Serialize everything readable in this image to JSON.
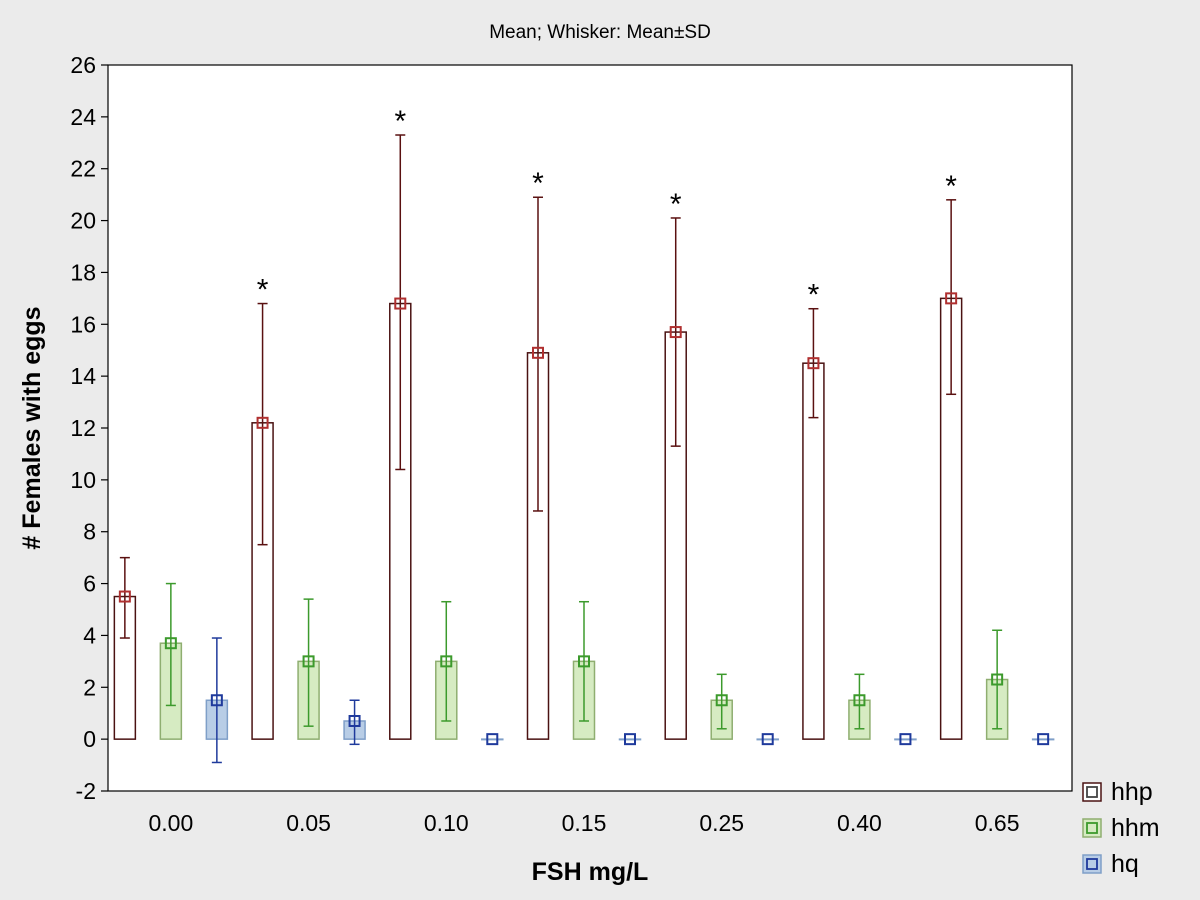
{
  "chart_data": {
    "type": "bar",
    "title": "Mean; Whisker: Mean±SD",
    "xlabel": "FSH mg/L",
    "ylabel": "# Females with eggs",
    "ylim": [
      -2,
      26
    ],
    "yticks": [
      "-2",
      "0",
      "2",
      "4",
      "6",
      "8",
      "10",
      "12",
      "14",
      "16",
      "18",
      "20",
      "22",
      "24",
      "26"
    ],
    "categories": [
      "0.00",
      "0.05",
      "0.10",
      "0.15",
      "0.25",
      "0.40",
      "0.65"
    ],
    "legend_position": "bottom-right, outside plot",
    "grid": false,
    "series": [
      {
        "name": "hhp",
        "fill": "#ffffff",
        "edge": "#4a1212",
        "marker": "#b03030",
        "values": [
          5.5,
          12.2,
          16.8,
          14.9,
          15.7,
          14.5,
          17.0
        ],
        "err_low": [
          3.9,
          7.5,
          10.4,
          8.8,
          11.3,
          12.4,
          13.3
        ],
        "err_high": [
          7.0,
          16.8,
          23.3,
          20.9,
          20.1,
          16.6,
          20.8
        ],
        "annotations": [
          "",
          "*",
          "*",
          "*",
          "*",
          "*",
          "*"
        ]
      },
      {
        "name": "hhm",
        "fill": "#d6ebc2",
        "edge": "#8fae70",
        "marker": "#3c9a2c",
        "values": [
          3.7,
          3.0,
          3.0,
          3.0,
          1.5,
          1.5,
          2.3
        ],
        "err_low": [
          1.3,
          0.5,
          0.7,
          0.7,
          0.4,
          0.4,
          0.4
        ],
        "err_high": [
          6.0,
          5.4,
          5.3,
          5.3,
          2.5,
          2.5,
          4.2
        ],
        "annotations": [
          "",
          "",
          "",
          "",
          "",
          "",
          ""
        ]
      },
      {
        "name": "hq",
        "fill": "#b8cde6",
        "edge": "#7f9fc8",
        "marker": "#1f3a9c",
        "values": [
          1.5,
          0.7,
          0.0,
          0.0,
          0.0,
          0.0,
          0.0
        ],
        "err_low": [
          -0.9,
          -0.2,
          0.0,
          0.0,
          0.0,
          0.0,
          0.0
        ],
        "err_high": [
          3.9,
          1.5,
          0.0,
          0.0,
          0.0,
          0.0,
          0.0
        ],
        "annotations": [
          "",
          "",
          "",
          "",
          "",
          "",
          ""
        ]
      }
    ]
  }
}
